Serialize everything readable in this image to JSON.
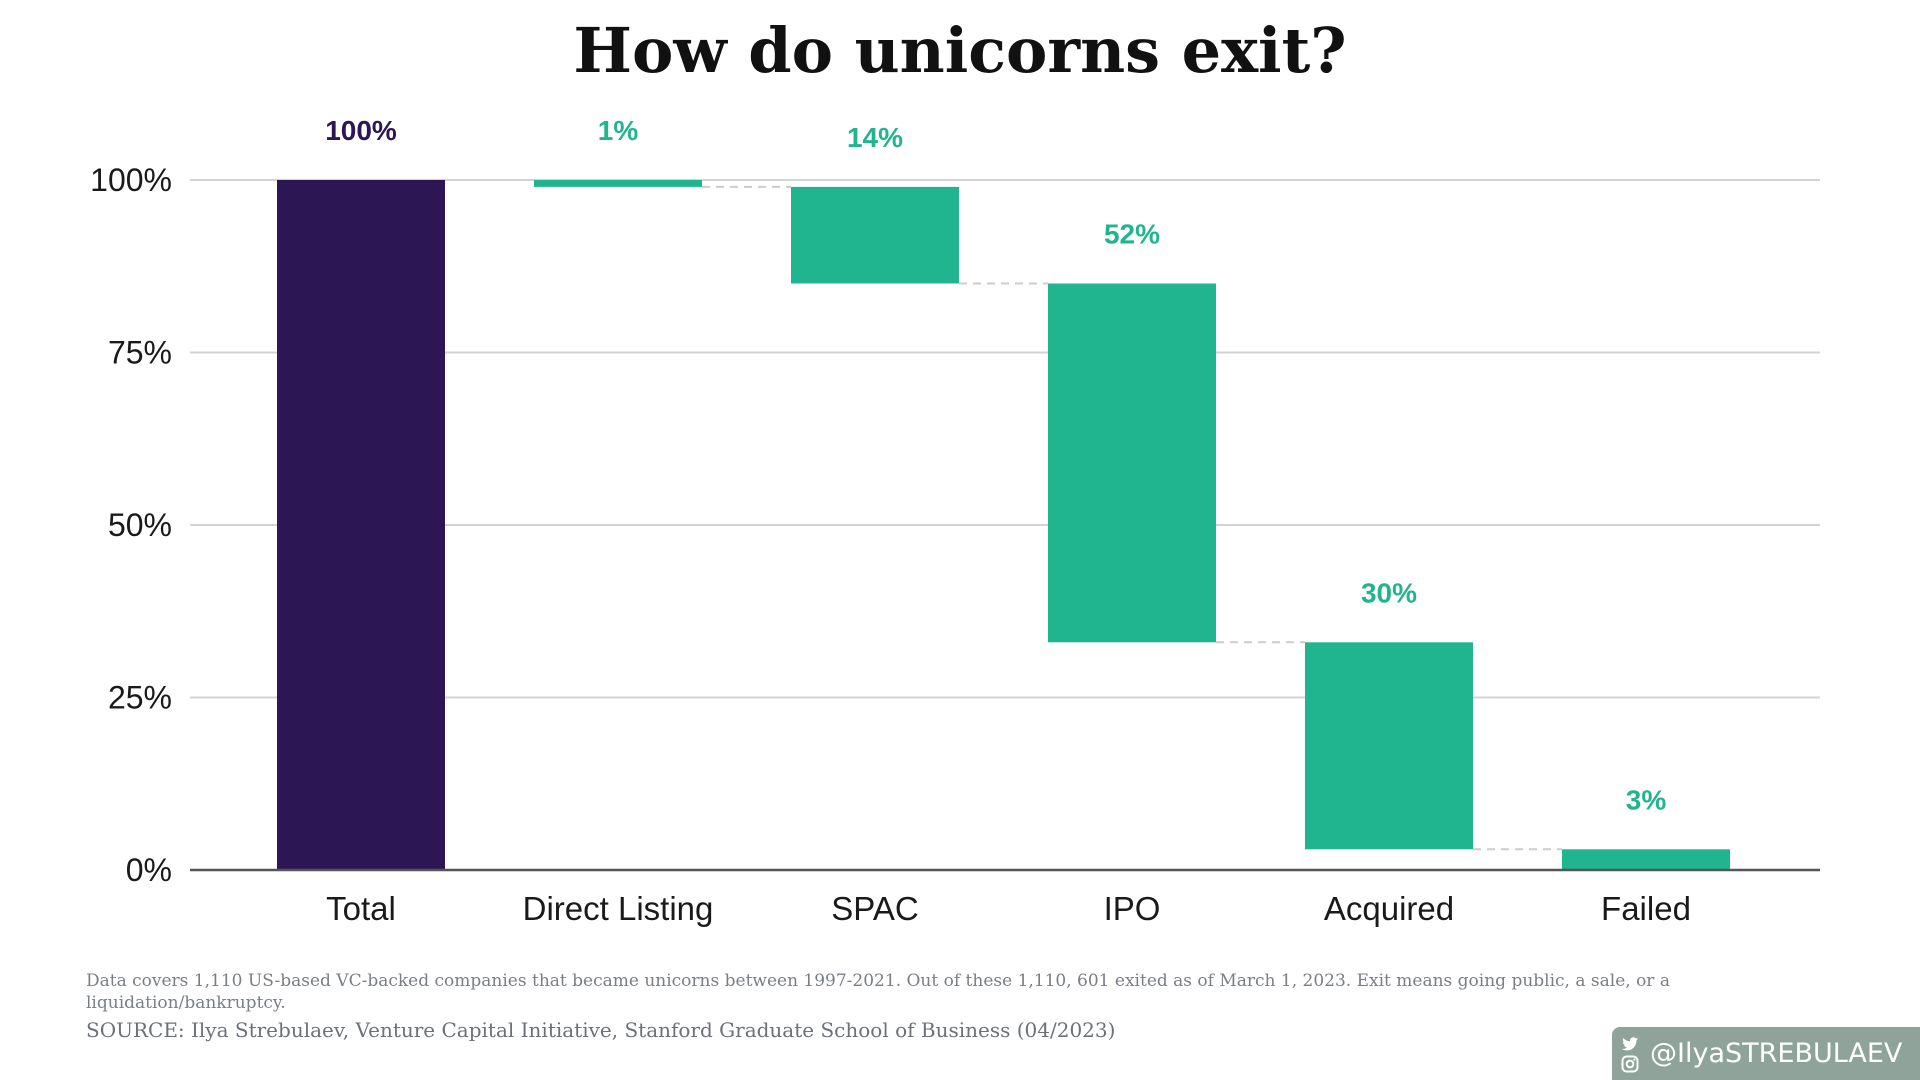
{
  "chart_data": {
    "type": "waterfall",
    "title": "How do unicorns exit?",
    "categories": [
      "Total",
      "Direct Listing",
      "SPAC",
      "IPO",
      "Acquired",
      "Failed"
    ],
    "values": [
      100,
      1,
      14,
      52,
      30,
      3
    ],
    "value_labels": [
      "100%",
      "1%",
      "14%",
      "52%",
      "30%",
      "3%"
    ],
    "bar_kinds": [
      "total",
      "decrease",
      "decrease",
      "decrease",
      "decrease",
      "decrease"
    ],
    "yticks": [
      0,
      25,
      50,
      75,
      100
    ],
    "ytick_labels": [
      "0%",
      "25%",
      "50%",
      "75%",
      "100%"
    ],
    "ylim": [
      0,
      100
    ],
    "xlabel": "",
    "ylabel": "",
    "grid": true,
    "colors": {
      "total": "#2c1654",
      "decrease": "#21b58f",
      "total_label": "#2c1654",
      "decrease_label": "#21b58f"
    }
  },
  "footer": {
    "note": "Data covers 1,110 US-based VC-backed companies that became unicorns between 1997-2021. Out of these 1,110, 601 exited as of March 1, 2023. Exit means going public, a sale, or a liquidation/bankruptcy.",
    "source": "SOURCE: Ilya Strebulaev, Venture Capital Initiative, Stanford Graduate School of Business (04/2023)"
  },
  "badge": {
    "handle": "@IlyaSTREBULAEV",
    "icons": [
      "twitter-icon",
      "instagram-icon"
    ]
  }
}
